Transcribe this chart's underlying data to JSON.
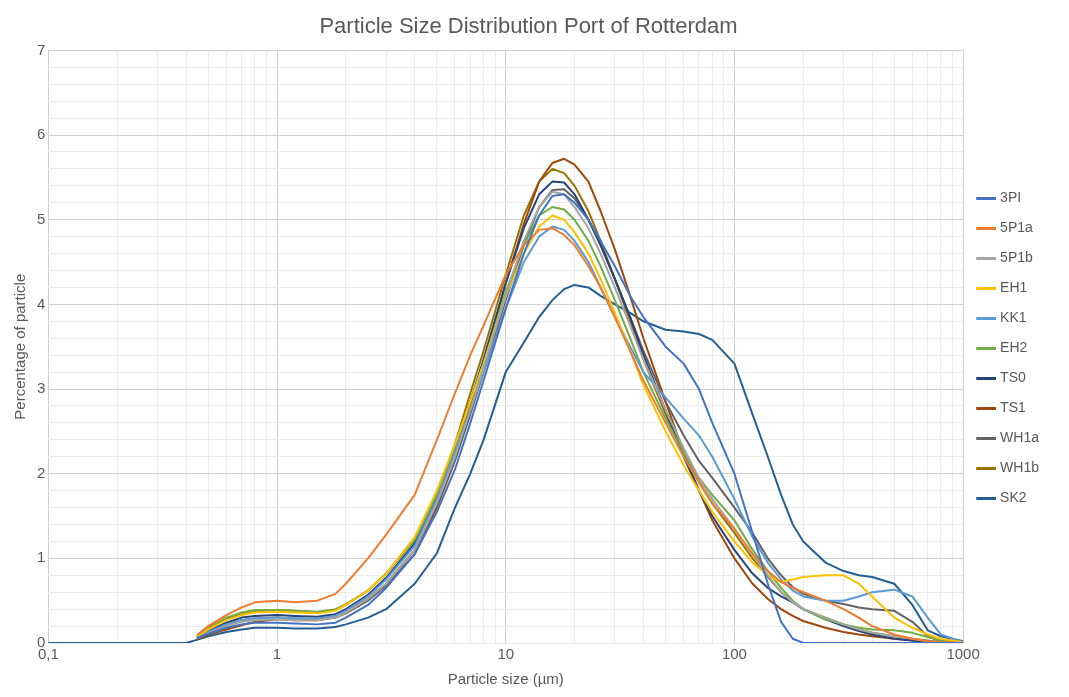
{
  "chart_data": {
    "type": "line",
    "title": "Particle Size Distribution Port of Rotterdam",
    "xlabel": "Particle size (µm)",
    "ylabel": "Percentage of particle",
    "log": "x",
    "grid": true,
    "legend": "right",
    "marker": "none",
    "line_style": "solid",
    "x": [
      0.1,
      0.2,
      0.3,
      0.4,
      0.45,
      0.5,
      0.6,
      0.7,
      0.8,
      1,
      1.2,
      1.5,
      1.8,
      2,
      2.5,
      3,
      4,
      5,
      6,
      7,
      8,
      10,
      12,
      14,
      16,
      18,
      20,
      23,
      26,
      30,
      35,
      40,
      50,
      60,
      70,
      80,
      100,
      120,
      140,
      160,
      180,
      200,
      250,
      300,
      350,
      400,
      500,
      600,
      700,
      800,
      1000
    ],
    "xlim": [
      0.1,
      1000
    ],
    "xticks": [
      {
        "value": 0.1,
        "label": "0,1"
      },
      {
        "value": 0.2,
        "label": null
      },
      {
        "value": 0.3,
        "label": null
      },
      {
        "value": 0.4,
        "label": null
      },
      {
        "value": 0.5,
        "label": null
      },
      {
        "value": 0.6,
        "label": null
      },
      {
        "value": 0.7,
        "label": null
      },
      {
        "value": 0.8,
        "label": null
      },
      {
        "value": 0.9,
        "label": null
      },
      1,
      {
        "value": 2,
        "label": null
      },
      {
        "value": 3,
        "label": null
      },
      {
        "value": 4,
        "label": null
      },
      {
        "value": 5,
        "label": null
      },
      {
        "value": 6,
        "label": null
      },
      {
        "value": 7,
        "label": null
      },
      {
        "value": 8,
        "label": null
      },
      {
        "value": 9,
        "label": null
      },
      10,
      {
        "value": 20,
        "label": null
      },
      {
        "value": 30,
        "label": null
      },
      {
        "value": 40,
        "label": null
      },
      {
        "value": 50,
        "label": null
      },
      {
        "value": 60,
        "label": null
      },
      {
        "value": 70,
        "label": null
      },
      {
        "value": 80,
        "label": null
      },
      {
        "value": 90,
        "label": null
      },
      100,
      {
        "value": 200,
        "label": null
      },
      {
        "value": 300,
        "label": null
      },
      {
        "value": 400,
        "label": null
      },
      {
        "value": 500,
        "label": null
      },
      {
        "value": 600,
        "label": null
      },
      {
        "value": 700,
        "label": null
      },
      {
        "value": 800,
        "label": null
      },
      {
        "value": 900,
        "label": null
      },
      1000
    ],
    "ylim": [
      0,
      7
    ],
    "yticks": [
      0,
      {
        "value": 0.2,
        "label": null
      },
      {
        "value": 0.4,
        "label": null
      },
      {
        "value": 0.6,
        "label": null
      },
      {
        "value": 0.8,
        "label": null
      },
      1,
      {
        "value": 1.2,
        "label": null
      },
      {
        "value": 1.4,
        "label": null
      },
      {
        "value": 1.6,
        "label": null
      },
      {
        "value": 1.8,
        "label": null
      },
      2,
      {
        "value": 2.2,
        "label": null
      },
      {
        "value": 2.4,
        "label": null
      },
      {
        "value": 2.6,
        "label": null
      },
      {
        "value": 2.8,
        "label": null
      },
      3,
      {
        "value": 3.2,
        "label": null
      },
      {
        "value": 3.4,
        "label": null
      },
      {
        "value": 3.6,
        "label": null
      },
      {
        "value": 3.8,
        "label": null
      },
      4,
      {
        "value": 4.2,
        "label": null
      },
      {
        "value": 4.4,
        "label": null
      },
      {
        "value": 4.6,
        "label": null
      },
      {
        "value": 4.8,
        "label": null
      },
      5,
      {
        "value": 5.2,
        "label": null
      },
      {
        "value": 5.4,
        "label": null
      },
      {
        "value": 5.6,
        "label": null
      },
      {
        "value": 5.8,
        "label": null
      },
      6,
      {
        "value": 6.2,
        "label": null
      },
      {
        "value": 6.4,
        "label": null
      },
      {
        "value": 6.6,
        "label": null
      },
      {
        "value": 6.8,
        "label": null
      },
      7
    ],
    "series": [
      {
        "name": "3PI",
        "color": "#4472c4",
        "values": [
          null,
          null,
          null,
          null,
          0.06,
          0.11,
          0.18,
          0.22,
          0.24,
          0.24,
          0.23,
          0.22,
          0.24,
          0.3,
          0.45,
          0.65,
          1.05,
          1.55,
          2.05,
          2.6,
          3.1,
          3.95,
          4.6,
          5.05,
          5.28,
          5.3,
          5.2,
          5.0,
          4.75,
          4.45,
          4.1,
          3.85,
          3.5,
          3.3,
          3.0,
          2.6,
          2.0,
          1.3,
          0.7,
          0.25,
          0.05,
          0,
          0,
          0,
          0,
          0,
          0,
          0,
          0,
          0,
          0
        ]
      },
      {
        "name": "5P1a",
        "color": "#ed7d31",
        "values": [
          null,
          null,
          null,
          null,
          0.1,
          0.2,
          0.33,
          0.42,
          0.48,
          0.5,
          0.48,
          0.5,
          0.58,
          0.7,
          1.0,
          1.28,
          1.75,
          2.4,
          2.95,
          3.4,
          3.75,
          4.35,
          4.7,
          4.88,
          4.9,
          4.82,
          4.7,
          4.45,
          4.2,
          3.85,
          3.45,
          3.1,
          2.6,
          2.2,
          1.9,
          1.65,
          1.35,
          1.05,
          0.85,
          0.72,
          0.65,
          0.6,
          0.5,
          0.4,
          0.3,
          0.2,
          0.1,
          0.05,
          0.02,
          0.01,
          0
        ]
      },
      {
        "name": "5P1b",
        "color": "#a5a5a5",
        "values": [
          null,
          null,
          null,
          null,
          0.06,
          0.12,
          0.2,
          0.25,
          0.27,
          0.28,
          0.27,
          0.27,
          0.3,
          0.36,
          0.52,
          0.7,
          1.1,
          1.65,
          2.2,
          2.75,
          3.25,
          4.1,
          4.75,
          5.15,
          5.33,
          5.3,
          5.15,
          4.9,
          4.6,
          4.2,
          3.75,
          3.35,
          2.75,
          2.3,
          1.95,
          1.7,
          1.35,
          1.05,
          0.8,
          0.6,
          0.48,
          0.4,
          0.3,
          0.22,
          0.16,
          0.12,
          0.08,
          0.05,
          0.02,
          0.01,
          0
        ]
      },
      {
        "name": "EH1",
        "color": "#ffc000",
        "values": [
          null,
          null,
          null,
          null,
          0.08,
          0.16,
          0.27,
          0.33,
          0.36,
          0.37,
          0.36,
          0.35,
          0.38,
          0.45,
          0.62,
          0.82,
          1.25,
          1.8,
          2.35,
          2.85,
          3.3,
          4.1,
          4.6,
          4.92,
          5.05,
          5.0,
          4.85,
          4.6,
          4.3,
          3.9,
          3.45,
          3.05,
          2.5,
          2.1,
          1.8,
          1.55,
          1.2,
          0.95,
          0.8,
          0.72,
          0.75,
          0.78,
          0.8,
          0.8,
          0.7,
          0.55,
          0.3,
          0.18,
          0.1,
          0.05,
          0.01
        ]
      },
      {
        "name": "KK1",
        "color": "#5b9bd5",
        "values": [
          null,
          null,
          null,
          null,
          0.06,
          0.13,
          0.22,
          0.27,
          0.29,
          0.3,
          0.29,
          0.29,
          0.32,
          0.38,
          0.55,
          0.75,
          1.15,
          1.7,
          2.25,
          2.75,
          3.2,
          3.95,
          4.5,
          4.8,
          4.92,
          4.88,
          4.75,
          4.5,
          4.2,
          3.85,
          3.5,
          3.2,
          2.9,
          2.65,
          2.45,
          2.2,
          1.7,
          1.25,
          0.95,
          0.75,
          0.62,
          0.55,
          0.5,
          0.5,
          0.55,
          0.6,
          0.63,
          0.55,
          0.3,
          0.1,
          0.01
        ]
      },
      {
        "name": "EH2",
        "color": "#70ad47",
        "values": [
          null,
          null,
          null,
          null,
          0.09,
          0.19,
          0.3,
          0.36,
          0.39,
          0.39,
          0.38,
          0.37,
          0.4,
          0.46,
          0.62,
          0.82,
          1.22,
          1.75,
          2.3,
          2.85,
          3.3,
          4.15,
          4.7,
          5.05,
          5.15,
          5.12,
          5.0,
          4.75,
          4.45,
          4.05,
          3.6,
          3.2,
          2.65,
          2.25,
          1.95,
          1.75,
          1.45,
          1.1,
          0.85,
          0.65,
          0.5,
          0.4,
          0.28,
          0.22,
          0.18,
          0.16,
          0.15,
          0.12,
          0.07,
          0.03,
          0.01
        ]
      },
      {
        "name": "TS0",
        "color": "#264478",
        "values": [
          null,
          null,
          null,
          null,
          0.07,
          0.14,
          0.24,
          0.3,
          0.32,
          0.33,
          0.32,
          0.31,
          0.34,
          0.4,
          0.57,
          0.77,
          1.18,
          1.72,
          2.3,
          2.85,
          3.35,
          4.25,
          4.9,
          5.3,
          5.45,
          5.44,
          5.3,
          5.0,
          4.7,
          4.3,
          3.85,
          3.4,
          2.75,
          2.2,
          1.8,
          1.5,
          1.1,
          0.82,
          0.65,
          0.55,
          0.48,
          0.4,
          0.28,
          0.2,
          0.14,
          0.1,
          0.05,
          0.03,
          0.01,
          0,
          0
        ]
      },
      {
        "name": "TS1",
        "color": "#9e480e",
        "values": [
          null,
          null,
          null,
          null,
          0.05,
          0.1,
          0.16,
          0.21,
          0.25,
          0.28,
          0.27,
          0.27,
          0.3,
          0.36,
          0.52,
          0.7,
          1.1,
          1.62,
          2.2,
          2.78,
          3.3,
          4.25,
          4.95,
          5.45,
          5.67,
          5.72,
          5.65,
          5.45,
          5.1,
          4.65,
          4.1,
          3.6,
          2.85,
          2.25,
          1.8,
          1.45,
          1.0,
          0.7,
          0.52,
          0.4,
          0.32,
          0.26,
          0.18,
          0.13,
          0.1,
          0.08,
          0.05,
          0.03,
          0.01,
          0,
          0
        ]
      },
      {
        "name": "WH1a",
        "color": "#636363",
        "values": [
          null,
          null,
          null,
          null,
          0.06,
          0.13,
          0.22,
          0.27,
          0.29,
          0.3,
          0.29,
          0.28,
          0.3,
          0.35,
          0.5,
          0.68,
          1.05,
          1.6,
          2.15,
          2.7,
          3.2,
          4.05,
          4.7,
          5.15,
          5.35,
          5.36,
          5.25,
          5.0,
          4.7,
          4.3,
          3.85,
          3.45,
          2.85,
          2.45,
          2.15,
          1.95,
          1.6,
          1.3,
          1.0,
          0.8,
          0.66,
          0.58,
          0.5,
          0.46,
          0.42,
          0.4,
          0.38,
          0.25,
          0.08,
          0.02,
          0
        ]
      },
      {
        "name": "WH1b",
        "color": "#997300",
        "values": [
          null,
          null,
          null,
          null,
          0.08,
          0.17,
          0.28,
          0.34,
          0.37,
          0.39,
          0.38,
          0.36,
          0.39,
          0.45,
          0.62,
          0.82,
          1.22,
          1.75,
          2.35,
          2.95,
          3.45,
          4.35,
          5.05,
          5.45,
          5.6,
          5.55,
          5.4,
          5.1,
          4.75,
          4.3,
          3.8,
          3.35,
          2.7,
          2.25,
          1.9,
          1.65,
          1.3,
          1.0,
          0.78,
          0.6,
          0.48,
          0.4,
          0.3,
          0.22,
          0.16,
          0.12,
          0.08,
          0.05,
          0.03,
          0.01,
          0
        ]
      },
      {
        "name": "SK2",
        "color": "#255e91",
        "values": [
          0,
          0,
          0,
          0,
          0.04,
          0.08,
          0.13,
          0.16,
          0.18,
          0.18,
          0.17,
          0.17,
          0.19,
          0.22,
          0.3,
          0.4,
          0.7,
          1.06,
          1.6,
          2.0,
          2.4,
          3.2,
          3.55,
          3.85,
          4.05,
          4.18,
          4.23,
          4.2,
          4.1,
          4.0,
          3.9,
          3.8,
          3.7,
          3.68,
          3.65,
          3.58,
          3.3,
          2.7,
          2.2,
          1.75,
          1.4,
          1.2,
          0.95,
          0.85,
          0.8,
          0.78,
          0.7,
          0.45,
          0.15,
          0.08,
          0.02
        ]
      }
    ]
  }
}
